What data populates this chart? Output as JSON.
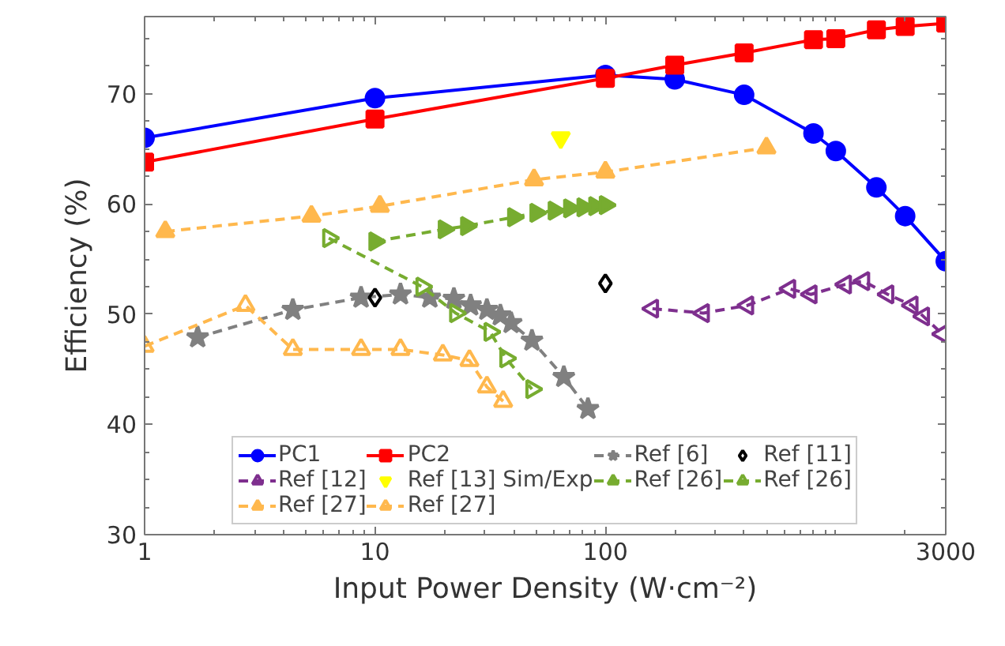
{
  "chart_data": {
    "type": "line",
    "xlabel": "Input Power Density (W·cm⁻²)",
    "ylabel": "Efficiency (%)",
    "log": "x",
    "xlim": [
      1,
      3000
    ],
    "xticks": [
      1,
      10,
      100,
      3000
    ],
    "ylim": [
      30,
      77
    ],
    "yticks": [
      30,
      40,
      50,
      60,
      70
    ],
    "grid": false,
    "legend": "bottom",
    "series": [
      {
        "name": "PC1",
        "color": "#0000ff",
        "marker": "circle",
        "line_style": "solid",
        "x": [
          1,
          10,
          100,
          200,
          400,
          800,
          1000,
          1500,
          2000,
          3000
        ],
        "values": [
          66.0,
          69.6,
          71.7,
          71.3,
          69.9,
          66.4,
          64.8,
          61.5,
          58.9,
          54.8
        ]
      },
      {
        "name": "PC2",
        "color": "#ff0000",
        "marker": "square",
        "line_style": "solid",
        "x": [
          1,
          10,
          100,
          200,
          400,
          800,
          1000,
          1500,
          2000,
          3000
        ],
        "values": [
          63.8,
          67.7,
          71.4,
          72.6,
          73.7,
          74.9,
          75.0,
          75.8,
          76.1,
          76.4
        ]
      },
      {
        "name": "Ref [6]",
        "color": "#808080",
        "marker": "star",
        "line_style": "dashed",
        "x": [
          1.7,
          4.4,
          8.7,
          12.9,
          17.3,
          22,
          26,
          30.6,
          35,
          39,
          48,
          66,
          84
        ],
        "values": [
          47.9,
          50.4,
          51.5,
          51.8,
          51.5,
          51.4,
          50.8,
          50.4,
          49.9,
          49.2,
          47.6,
          44.3,
          41.4
        ]
      },
      {
        "name": "Ref [11]",
        "type": "scatter",
        "color": "#000000",
        "marker": "diamond-open",
        "x": [
          10,
          100
        ],
        "values": [
          51.5,
          52.8
        ]
      },
      {
        "name": "Ref [12]",
        "color": "#7e2f8e",
        "marker": "triangle-left-open",
        "line_style": "dashed",
        "x": [
          160,
          266,
          414,
          630,
          780,
          1100,
          1320,
          1680,
          2140,
          2400,
          2900
        ],
        "values": [
          50.5,
          50.1,
          50.8,
          52.3,
          51.8,
          52.7,
          53.0,
          51.8,
          50.8,
          49.8,
          48.2
        ]
      },
      {
        "name": "Ref [13] Sim/Exp",
        "type": "scatter",
        "color": "#ffff00",
        "marker": "triangle-down",
        "x": [
          64
        ],
        "values": [
          66.0
        ]
      },
      {
        "name": "Ref [26]",
        "color": "#77ac30",
        "marker": "triangle-right",
        "line_style": "dashed",
        "x": [
          10,
          20,
          25,
          40,
          50,
          60,
          70,
          80,
          90,
          100
        ],
        "values": [
          56.6,
          57.7,
          58.0,
          58.8,
          59.2,
          59.4,
          59.6,
          59.7,
          59.8,
          59.9
        ]
      },
      {
        "name": "Ref [26]",
        "color": "#77ac30",
        "marker": "triangle-right-open",
        "line_style": "dashed",
        "x": [
          6.3,
          16,
          22.4,
          31.6,
          37,
          48
        ],
        "values": [
          56.9,
          52.5,
          50.1,
          48.4,
          46.0,
          43.2
        ]
      },
      {
        "name": "Ref [27]",
        "color": "#ffb84d",
        "marker": "triangle",
        "line_style": "dashed",
        "x": [
          1.23,
          5.3,
          10.5,
          49,
          100,
          500
        ],
        "values": [
          57.5,
          58.9,
          59.8,
          62.2,
          62.9,
          65.1
        ]
      },
      {
        "name": "Ref [27]",
        "color": "#ffb84d",
        "marker": "triangle-open",
        "line_style": "dashed",
        "x": [
          1,
          2.74,
          4.4,
          8.7,
          12.9,
          19.7,
          25.7,
          30.6,
          36
        ],
        "values": [
          47.1,
          50.8,
          46.8,
          46.8,
          46.8,
          46.3,
          45.8,
          43.4,
          42.1
        ]
      }
    ]
  }
}
